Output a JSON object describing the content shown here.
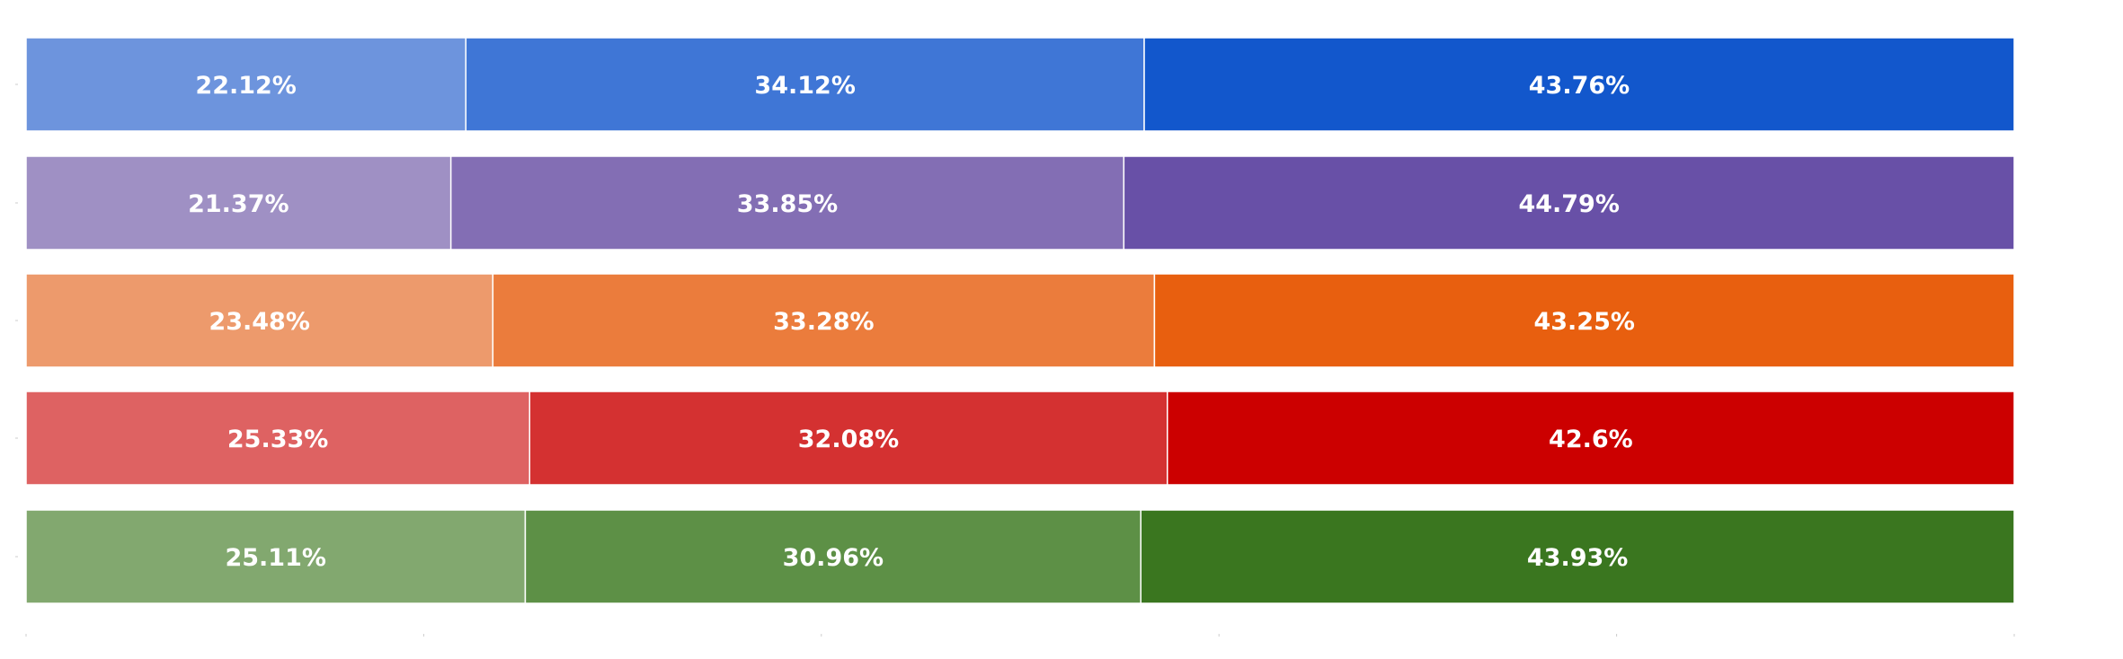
{
  "chart_data": {
    "type": "bar",
    "orientation": "horizontal",
    "stacked": true,
    "normalized": true,
    "xlim": [
      0,
      100
    ],
    "value_format": "percent",
    "grid": false,
    "legend": "none",
    "rows": [
      {
        "values": [
          22.12,
          34.12,
          43.76
        ],
        "labels": [
          "22.12%",
          "34.12%",
          "43.76%"
        ],
        "colors": [
          "#6d94dd",
          "#3f76d6",
          "#1257cc"
        ]
      },
      {
        "values": [
          21.37,
          33.85,
          44.79
        ],
        "labels": [
          "21.37%",
          "33.85%",
          "44.79%"
        ],
        "colors": [
          "#9f90c4",
          "#836eb4",
          "#6850a7"
        ]
      },
      {
        "values": [
          23.48,
          33.28,
          43.25
        ],
        "labels": [
          "23.48%",
          "33.28%",
          "43.25%"
        ],
        "colors": [
          "#ed9a6c",
          "#eb7c3c",
          "#e85f0f"
        ]
      },
      {
        "values": [
          25.33,
          32.08,
          42.6
        ],
        "labels": [
          "25.33%",
          "32.08%",
          "42.6%"
        ],
        "colors": [
          "#de6262",
          "#d43131",
          "#cc0000"
        ]
      },
      {
        "values": [
          25.11,
          30.96,
          43.93
        ],
        "labels": [
          "25.11%",
          "30.96%",
          "43.93%"
        ],
        "colors": [
          "#82a86f",
          "#5d9046",
          "#3a761f"
        ]
      }
    ]
  }
}
